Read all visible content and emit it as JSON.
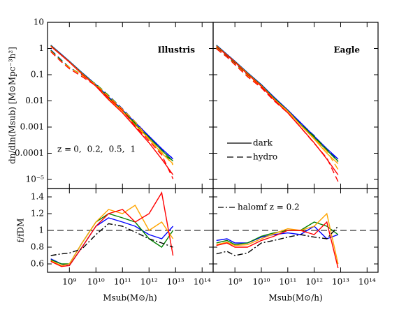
{
  "chart_data": [
    {
      "type": "line",
      "title": "Illustris",
      "ylabel": "dn/dln(Msub) [M⊙Mpc⁻³h²]",
      "log_x": true,
      "log_y": true,
      "xlim": [
        150000000,
        260000000000000
      ],
      "ylim": [
        4.5e-06,
        10
      ],
      "yticks": [
        10,
        1,
        0.1,
        0.01,
        0.001,
        0.0001,
        {
          "value": 1e-05,
          "label": "10⁻⁵"
        }
      ],
      "legend_prefix": "z =",
      "legend_separator": ",",
      "x": [
        200000000,
        500000000,
        1000000000,
        3000000000,
        10000000000,
        30000000000,
        100000000000,
        300000000000,
        1000000000000,
        3000000000000,
        8000000000000
      ],
      "series": [
        {
          "name": "0",
          "color": "#0000ff",
          "values": [
            1.35,
            0.6,
            0.33,
            0.12,
            0.042,
            0.014,
            0.0045,
            0.0015,
            0.00045,
            0.00015,
            6e-05
          ],
          "hydro_values": [
            0.89,
            0.36,
            0.19,
            0.096,
            0.044,
            0.016,
            0.005,
            0.0016,
            0.00043,
            0.000135,
            6.3e-05
          ]
        },
        {
          "name": "0.2",
          "color": "#008000",
          "values": [
            1.3,
            0.58,
            0.32,
            0.115,
            0.04,
            0.013,
            0.0042,
            0.0013,
            0.0004,
            0.00013,
            5e-05
          ],
          "hydro_values": [
            0.85,
            0.35,
            0.19,
            0.098,
            0.044,
            0.016,
            0.0048,
            0.0014,
            0.00036,
            0.0001,
            5e-05
          ]
        },
        {
          "name": "0.5",
          "color": "#ffa500",
          "values": [
            1.25,
            0.56,
            0.31,
            0.11,
            0.038,
            0.012,
            0.004,
            0.0012,
            0.00035,
            0.0001,
            4e-05
          ],
          "hydro_values": [
            0.8,
            0.32,
            0.19,
            0.094,
            0.042,
            0.015,
            0.0048,
            0.0016,
            0.00035,
            0.00011,
            3.6e-05
          ]
        },
        {
          "name": "1",
          "color": "#ff0000",
          "values": [
            1.2,
            0.55,
            0.3,
            0.105,
            0.036,
            0.011,
            0.0035,
            0.001,
            0.00025,
            6e-05,
            1.5e-05
          ],
          "hydro_values": [
            0.76,
            0.31,
            0.17,
            0.084,
            0.038,
            0.013,
            0.0044,
            0.0011,
            0.0003,
            8.7e-05,
            1.05e-05
          ]
        }
      ]
    },
    {
      "type": "line",
      "title": "Eagle",
      "log_x": true,
      "log_y": true,
      "xlim": [
        150000000,
        260000000000000
      ],
      "ylim": [
        4.5e-06,
        10
      ],
      "linestyle_legend": [
        {
          "label": "dark",
          "dash": "solid"
        },
        {
          "label": "hydro",
          "dash": "dashed"
        }
      ],
      "x": [
        200000000,
        500000000,
        1000000000,
        3000000000,
        10000000000,
        30000000000,
        100000000000,
        300000000000,
        1000000000000,
        3000000000000,
        8000000000000
      ],
      "series": [
        {
          "color": "#0000ff",
          "values": [
            1.35,
            0.6,
            0.33,
            0.12,
            0.042,
            0.014,
            0.0045,
            0.0015,
            0.00045,
            0.00015,
            6e-05
          ],
          "hydro_values": [
            1.19,
            0.54,
            0.28,
            0.102,
            0.0386,
            0.0133,
            0.00437,
            0.00143,
            0.00047,
            0.000135,
            5.7e-05
          ]
        },
        {
          "color": "#008000",
          "values": [
            1.3,
            0.58,
            0.32,
            0.115,
            0.04,
            0.013,
            0.0042,
            0.0013,
            0.0004,
            0.00013,
            5e-05
          ],
          "hydro_values": [
            1.1,
            0.51,
            0.266,
            0.098,
            0.0372,
            0.0126,
            0.0042,
            0.0013,
            0.00044,
            0.000137,
            4.75e-05
          ]
        },
        {
          "color": "#ffa500",
          "values": [
            1.25,
            0.56,
            0.31,
            0.11,
            0.038,
            0.012,
            0.004,
            0.0012,
            0.00035,
            0.0001,
            4e-05
          ],
          "hydro_values": [
            1.04,
            0.48,
            0.254,
            0.091,
            0.0342,
            0.0115,
            0.0041,
            0.0012,
            0.00037,
            0.00012,
            2.4e-05
          ]
        },
        {
          "color": "#ff0000",
          "values": [
            1.2,
            0.55,
            0.3,
            0.105,
            0.036,
            0.011,
            0.0035,
            0.001,
            0.00025,
            6e-05,
            1.5e-05
          ],
          "hydro_values": [
            0.98,
            0.47,
            0.24,
            0.084,
            0.0317,
            0.0102,
            0.0035,
            0.001,
            0.00024,
            6.6e-05,
            8.3e-06
          ]
        }
      ]
    },
    {
      "type": "line",
      "ylabel": "f/fDM",
      "xlabel": "Msub(M⊙/h)",
      "log_x": true,
      "xlim": [
        150000000,
        260000000000000
      ],
      "ylim": [
        0.5,
        1.5
      ],
      "xticks": [
        {
          "value": 1000000000,
          "label": "10⁹"
        },
        {
          "value": 10000000000,
          "label": "10¹⁰"
        },
        {
          "value": 100000000000,
          "label": "10¹¹"
        },
        {
          "value": 1000000000000,
          "label": "10¹²"
        },
        {
          "value": 10000000000000,
          "label": "10¹³"
        },
        {
          "value": 100000000000000,
          "label": "10¹⁴"
        }
      ],
      "yticks": [
        0.6,
        0.8,
        1,
        1.2,
        1.4
      ],
      "reference_y": 1,
      "x": [
        200000000,
        500000000,
        1000000000,
        3000000000,
        10000000000,
        30000000000,
        100000000000,
        300000000000,
        1000000000000,
        3000000000000,
        8000000000000
      ],
      "series": [
        {
          "color": "#0000ff",
          "values": [
            0.66,
            0.6,
            0.58,
            0.8,
            1.05,
            1.15,
            1.1,
            1.05,
            0.95,
            0.9,
            1.05
          ]
        },
        {
          "color": "#008000",
          "values": [
            0.65,
            0.6,
            0.6,
            0.85,
            1.1,
            1.2,
            1.15,
            1.1,
            0.9,
            0.8,
            1.0
          ]
        },
        {
          "color": "#ffa500",
          "values": [
            0.64,
            0.58,
            0.6,
            0.85,
            1.1,
            1.25,
            1.2,
            1.3,
            1.0,
            1.1,
            0.9
          ]
        },
        {
          "color": "#ff0000",
          "values": [
            0.63,
            0.57,
            0.58,
            0.8,
            1.05,
            1.2,
            1.25,
            1.1,
            1.2,
            1.45,
            0.7
          ]
        },
        {
          "color": "#000000",
          "dash": "dashdot",
          "values": [
            0.7,
            0.72,
            0.73,
            0.78,
            0.95,
            1.08,
            1.05,
            0.98,
            0.9,
            0.85,
            0.8
          ]
        }
      ]
    },
    {
      "type": "line",
      "xlabel": "Msub(M⊙/h)",
      "log_x": true,
      "annotation": "halomf z = 0.2",
      "xlim": [
        150000000,
        260000000000000
      ],
      "ylim": [
        0.5,
        1.5
      ],
      "xticks": [
        {
          "value": 1000000000,
          "label": "10⁹"
        },
        {
          "value": 10000000000,
          "label": "10¹⁰"
        },
        {
          "value": 100000000000,
          "label": "10¹¹"
        },
        {
          "value": 1000000000000,
          "label": "10¹²"
        },
        {
          "value": 10000000000000,
          "label": "10¹³"
        },
        {
          "value": 100000000000000,
          "label": "10¹⁴"
        }
      ],
      "reference_y": 1,
      "x": [
        200000000,
        500000000,
        1000000000,
        3000000000,
        10000000000,
        30000000000,
        100000000000,
        300000000000,
        1000000000000,
        3000000000000,
        8000000000000
      ],
      "series": [
        {
          "color": "#0000ff",
          "values": [
            0.88,
            0.9,
            0.85,
            0.85,
            0.92,
            0.95,
            0.97,
            0.95,
            1.05,
            0.9,
            0.95
          ]
        },
        {
          "color": "#008000",
          "values": [
            0.85,
            0.88,
            0.83,
            0.85,
            0.93,
            0.97,
            1.0,
            1.0,
            1.1,
            1.05,
            0.95
          ]
        },
        {
          "color": "#ffa500",
          "values": [
            0.83,
            0.86,
            0.82,
            0.83,
            0.9,
            0.96,
            1.02,
            1.0,
            1.05,
            1.2,
            0.6
          ]
        },
        {
          "color": "#ff0000",
          "values": [
            0.82,
            0.85,
            0.8,
            0.8,
            0.88,
            0.93,
            1.0,
            1.0,
            0.95,
            1.1,
            0.55
          ]
        },
        {
          "color": "#000000",
          "dash": "dashdot",
          "values": [
            0.72,
            0.75,
            0.7,
            0.73,
            0.85,
            0.88,
            0.92,
            0.95,
            0.92,
            0.9,
            1.05
          ]
        }
      ]
    }
  ]
}
